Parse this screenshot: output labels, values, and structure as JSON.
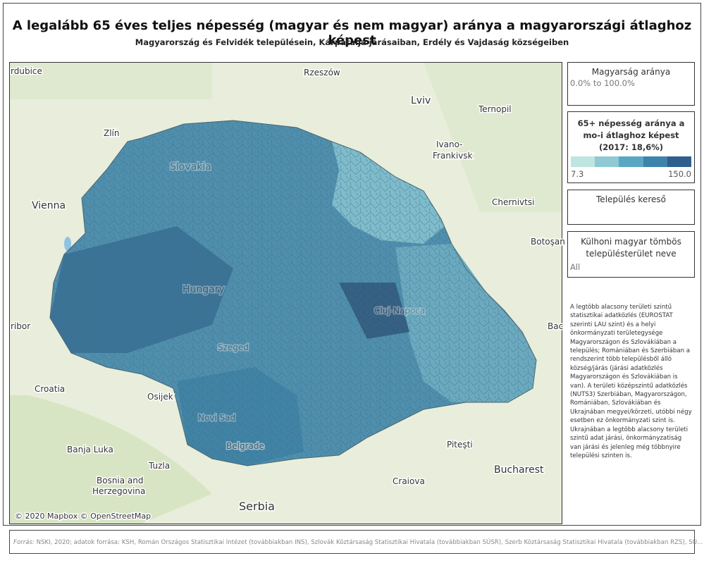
{
  "header": {
    "title": "A legalább 65 éves teljes népesség (magyar és nem magyar) aránya a magyarországi átlaghoz képest",
    "subtitle": "Magyarország és Felvidék településein, Kárpátalja járásaiban, Erdély és Vajdaság községeiben"
  },
  "map": {
    "labels": [
      "rdubice",
      "Rzeszów",
      "Lviv",
      "Ternopil",
      "Zlín",
      "Ivano-",
      "Frankivsk",
      "Vienna",
      "Chernivtsi",
      "Botoşan",
      "Slovakia",
      "Hungary",
      "Szeged",
      "Cluj-Napoca",
      "Novi Sad",
      "Belgrade",
      "ribor",
      "Bac",
      "Croatia",
      "Osijek",
      "Banja Luka",
      "Tuzla",
      "Bosnia and",
      "Herzegovina",
      "Serbia",
      "Craiova",
      "Piteşti",
      "Bucharest"
    ],
    "attribution": "© 2020 Mapbox © OpenStreetMap"
  },
  "panels": {
    "share": {
      "title": "Magyarság aránya",
      "range": "0.0% to 100.0%"
    },
    "legend": {
      "title_lines": [
        "65+ népesség aránya a",
        "mo-i átlaghoz képest",
        "(2017: 18,6%)"
      ],
      "min": "7.3",
      "max": "150.0"
    },
    "search": {
      "title": "Település kereső"
    },
    "block": {
      "title": "Külhoni magyar tömbös településterület neve",
      "value": "All"
    },
    "note": "A legtöbb alacsony területi szintű statisztikai adatközlés (EUROSTAT szerinti LAU szint) és a helyi önkormányzati területegysége Magyarországon és Szlovákiában a település; Romániában és Szerbiában a rendszerint több településből álló község/járás (járási adatközlés Magyarországon és Szlovákiában is van). A területi középszintű adatközlés (NUTS3) Szerbiában, Magyarországon, Romániában, Szlovákiában és Ukrajnában megyei/körzeti, utóbbi négy esetben ez önkormányzati szint is. Ukrajnában a legtöbb alacsony területi szintű adat járási, önkormányzatiság van járási és jelenleg még többnyire települési szinten is."
  },
  "footer": {
    "label": "Forrás:",
    "text": "NSKI, 2020; adatok forrása: KSH, Román Országos Statisztikai Intézet (továbbiakban INS), Szlovák Köztársaság Statisztikai Hivatala (továbbiakban SÚSR), Szerb Köztársaság Statisztikai Hivatala (továbbiakban RZS), SU..."
  }
}
